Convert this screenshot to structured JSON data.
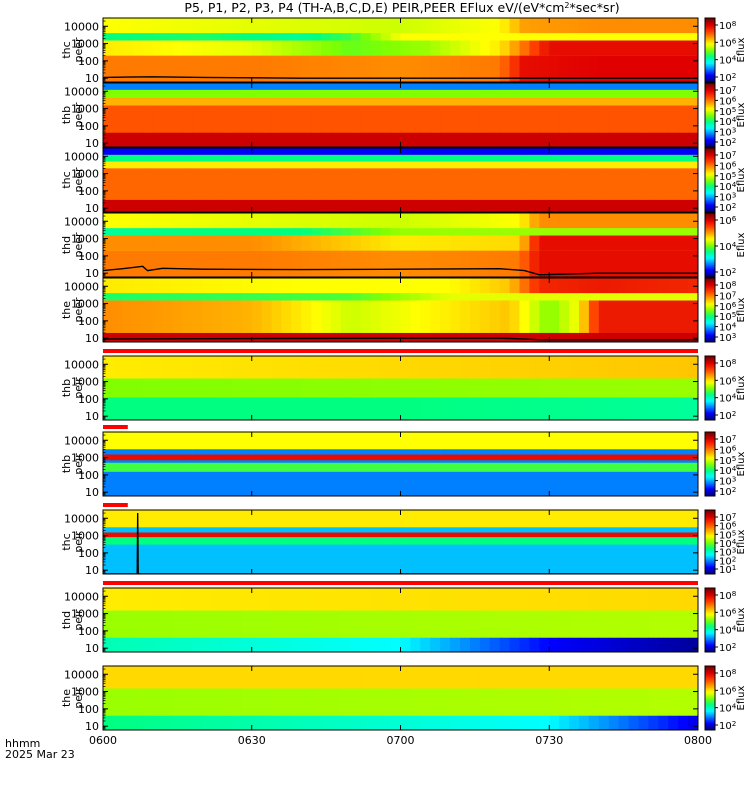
{
  "title": "P5, P1, P2, P3, P4 (TH-A,B,C,D,E) PEIR,PEER EFlux eV/(eV*cm^2*sec*sr)",
  "time_axis": {
    "label": "hhmm",
    "date": "2025 Mar 23",
    "ticks": [
      "0600",
      "0630",
      "0700",
      "0730",
      "0800"
    ],
    "range_minutes": [
      0,
      120
    ]
  },
  "colors": {
    "colormap": [
      "#000080",
      "#0000ff",
      "#0080ff",
      "#00ffff",
      "#00ff80",
      "#80ff00",
      "#ffff00",
      "#ffa000",
      "#ff4000",
      "#e00000",
      "#800000"
    ],
    "trace": "#000000",
    "flag_red": "#ff0000"
  },
  "chart_data": [
    {
      "type": "heatmap",
      "ylabel": [
        "thc",
        "peer"
      ],
      "yscale": "log",
      "ylim": [
        6,
        30000
      ],
      "yticks": [
        "10",
        "100",
        "1000",
        "10000"
      ],
      "colorbar": {
        "label": "Eflux",
        "ticks": [
          "10^2",
          "10^4",
          "10^6",
          "10^8"
        ]
      },
      "bands": [
        {
          "e_lo": 6,
          "e_hi": 30000,
          "x": [
            0,
            30,
            60,
            80,
            85,
            100,
            120
          ],
          "level": [
            0.6,
            0.58,
            0.56,
            0.6,
            0.7,
            0.72,
            0.72
          ]
        },
        {
          "e_lo": 1500,
          "e_hi": 4000,
          "x": [
            0,
            20,
            40,
            50,
            60
          ],
          "level": [
            0.4,
            0.42,
            0.38,
            0.45,
            0.6
          ]
        },
        {
          "e_lo": 200,
          "e_hi": 1500,
          "x": [
            0,
            30,
            50,
            65,
            80,
            90
          ],
          "level": [
            0.62,
            0.58,
            0.48,
            0.52,
            0.62,
            0.88
          ]
        },
        {
          "e_lo": 6,
          "e_hi": 200,
          "x": [
            0,
            30,
            60,
            80,
            85,
            100,
            120
          ],
          "level": [
            0.74,
            0.74,
            0.72,
            0.74,
            0.88,
            0.9,
            0.9
          ]
        }
      ],
      "trace": {
        "x": [
          0,
          10,
          20,
          40,
          60,
          80,
          85,
          100,
          120
        ],
        "y": [
          11,
          12,
          11,
          10,
          10,
          10,
          10,
          10,
          10
        ]
      }
    },
    {
      "type": "heatmap",
      "ylabel": [
        "thb",
        "peer"
      ],
      "yscale": "log",
      "ylim": [
        6,
        30000
      ],
      "yticks": [
        "10",
        "100",
        "1000",
        "10000"
      ],
      "colorbar": {
        "label": "Eflux",
        "ticks": [
          "10^2",
          "10^3",
          "10^4",
          "10^5",
          "10^6",
          "10^7"
        ]
      },
      "bands": [
        {
          "e_lo": 6,
          "e_hi": 30000,
          "x": [
            0,
            120
          ],
          "level": [
            0.78,
            0.78
          ]
        },
        {
          "e_lo": 12000,
          "e_hi": 30000,
          "x": [
            0,
            120
          ],
          "level": [
            0.2,
            0.2
          ]
        },
        {
          "e_lo": 4000,
          "e_hi": 12000,
          "x": [
            0,
            120
          ],
          "level": [
            0.5,
            0.5
          ]
        },
        {
          "e_lo": 1500,
          "e_hi": 4000,
          "x": [
            0,
            120
          ],
          "level": [
            0.68,
            0.68
          ]
        },
        {
          "e_lo": 6,
          "e_hi": 40,
          "x": [
            0,
            120
          ],
          "level": [
            0.92,
            0.92
          ]
        }
      ]
    },
    {
      "type": "heatmap",
      "ylabel": [
        "thc",
        "peer"
      ],
      "yscale": "log",
      "ylim": [
        6,
        30000
      ],
      "yticks": [
        "10",
        "100",
        "1000",
        "10000"
      ],
      "colorbar": {
        "label": "Eflux",
        "ticks": [
          "10^2",
          "10^3",
          "10^4",
          "10^5",
          "10^6",
          "10^7"
        ]
      },
      "bands": [
        {
          "e_lo": 6,
          "e_hi": 30000,
          "x": [
            0,
            120
          ],
          "level": [
            0.76,
            0.76
          ]
        },
        {
          "e_lo": 12000,
          "e_hi": 30000,
          "x": [
            0,
            120
          ],
          "level": [
            0.1,
            0.1
          ]
        },
        {
          "e_lo": 5000,
          "e_hi": 12000,
          "x": [
            0,
            120
          ],
          "level": [
            0.4,
            0.4
          ]
        },
        {
          "e_lo": 2000,
          "e_hi": 5000,
          "x": [
            0,
            120
          ],
          "level": [
            0.62,
            0.62
          ]
        },
        {
          "e_lo": 6,
          "e_hi": 30,
          "x": [
            0,
            120
          ],
          "level": [
            0.92,
            0.92
          ]
        }
      ]
    },
    {
      "type": "heatmap",
      "ylabel": [
        "thd",
        "peer"
      ],
      "yscale": "log",
      "ylim": [
        6,
        30000
      ],
      "yticks": [
        "10",
        "100",
        "1000",
        "10000"
      ],
      "colorbar": {
        "label": "Eflux",
        "ticks": [
          "10^2",
          "10^4",
          "10^6"
        ]
      },
      "bands": [
        {
          "e_lo": 6,
          "e_hi": 30000,
          "x": [
            0,
            30,
            60,
            84,
            88,
            100,
            120
          ],
          "level": [
            0.6,
            0.58,
            0.56,
            0.6,
            0.72,
            0.72,
            0.72
          ]
        },
        {
          "e_lo": 1500,
          "e_hi": 4000,
          "x": [
            0,
            20,
            40,
            60
          ],
          "level": [
            0.38,
            0.4,
            0.4,
            0.52
          ]
        },
        {
          "e_lo": 200,
          "e_hi": 1500,
          "x": [
            0,
            30,
            60,
            84,
            88
          ],
          "level": [
            0.72,
            0.72,
            0.62,
            0.64,
            0.88
          ]
        },
        {
          "e_lo": 6,
          "e_hi": 200,
          "x": [
            0,
            30,
            60,
            84,
            88,
            120
          ],
          "level": [
            0.74,
            0.74,
            0.72,
            0.74,
            0.88,
            0.88
          ]
        }
      ],
      "trace": {
        "x": [
          0,
          4,
          8,
          9,
          12,
          20,
          40,
          60,
          80,
          85,
          88,
          100,
          120
        ],
        "y": [
          14,
          18,
          25,
          14,
          19,
          17,
          16,
          17,
          18,
          14,
          8,
          10,
          10
        ]
      }
    },
    {
      "type": "heatmap",
      "ylabel": [
        "the",
        "peer"
      ],
      "yscale": "log",
      "ylim": [
        6,
        30000
      ],
      "yticks": [
        "10",
        "100",
        "1000",
        "10000"
      ],
      "colorbar": {
        "label": "Eflux",
        "ticks": [
          "10^3",
          "10^4",
          "10^5",
          "10^6",
          "10^7",
          "10^8"
        ]
      },
      "bands": [
        {
          "e_lo": 6,
          "e_hi": 30000,
          "x": [
            0,
            40,
            70,
            82,
            88,
            100,
            120
          ],
          "level": [
            0.62,
            0.6,
            0.6,
            0.66,
            0.84,
            0.86,
            0.84
          ]
        },
        {
          "e_lo": 1500,
          "e_hi": 4000,
          "x": [
            0,
            30,
            50,
            70
          ],
          "level": [
            0.42,
            0.44,
            0.46,
            0.58
          ]
        },
        {
          "e_lo": 20,
          "e_hi": 1500,
          "x": [
            0,
            30,
            50,
            70,
            82,
            90,
            96,
            100
          ],
          "level": [
            0.72,
            0.68,
            0.56,
            0.62,
            0.66,
            0.5,
            0.6,
            0.86
          ]
        },
        {
          "e_lo": 6,
          "e_hi": 20,
          "x": [
            0,
            60,
            120
          ],
          "level": [
            0.92,
            0.92,
            0.92
          ]
        }
      ],
      "trace": {
        "x": [
          0,
          60,
          80,
          85,
          88,
          100,
          120
        ],
        "y": [
          9,
          10,
          10,
          9,
          8,
          8,
          8
        ]
      }
    },
    {
      "type": "heatmap",
      "ylabel": [
        "thb",
        "peir"
      ],
      "yscale": "log",
      "ylim": [
        6,
        30000
      ],
      "yticks": [
        "10",
        "100",
        "1000",
        "10000"
      ],
      "colorbar": {
        "label": "Eflux",
        "ticks": [
          "10^2",
          "10^4",
          "10^6",
          "10^8"
        ]
      },
      "flag": {
        "x_start": 0,
        "x_end": 120
      },
      "bands": [
        {
          "e_lo": 6,
          "e_hi": 30000,
          "x": [
            0,
            120
          ],
          "level": [
            0.5,
            0.52
          ]
        },
        {
          "e_lo": 1500,
          "e_hi": 30000,
          "x": [
            0,
            60,
            120
          ],
          "level": [
            0.62,
            0.64,
            0.66
          ]
        },
        {
          "e_lo": 6,
          "e_hi": 120,
          "x": [
            0,
            60,
            120
          ],
          "level": [
            0.4,
            0.4,
            0.38
          ]
        }
      ]
    },
    {
      "type": "heatmap",
      "ylabel": [
        "thb",
        "peir"
      ],
      "yscale": "log",
      "ylim": [
        6,
        30000
      ],
      "yticks": [
        "10",
        "100",
        "1000",
        "10000"
      ],
      "colorbar": {
        "label": "Eflux",
        "ticks": [
          "10^2",
          "10^3",
          "10^4",
          "10^5",
          "10^6",
          "10^7"
        ]
      },
      "flag": {
        "x_start": 0,
        "x_end": 5
      },
      "bands": [
        {
          "e_lo": 6,
          "e_hi": 30000,
          "x": [
            0,
            120
          ],
          "level": [
            0.2,
            0.2
          ]
        },
        {
          "e_lo": 3000,
          "e_hi": 30000,
          "x": [
            0,
            120
          ],
          "level": [
            0.6,
            0.6
          ]
        },
        {
          "e_lo": 700,
          "e_hi": 1500,
          "x": [
            0,
            120
          ],
          "level": [
            0.88,
            0.88
          ]
        },
        {
          "e_lo": 150,
          "e_hi": 500,
          "x": [
            0,
            120
          ],
          "level": [
            0.45,
            0.45
          ]
        }
      ]
    },
    {
      "type": "heatmap",
      "ylabel": [
        "thc",
        "peir"
      ],
      "yscale": "log",
      "ylim": [
        6,
        30000
      ],
      "yticks": [
        "10",
        "100",
        "1000",
        "10000"
      ],
      "colorbar": {
        "label": "Eflux",
        "ticks": [
          "10^1",
          "10^2",
          "10^3",
          "10^4",
          "10^5",
          "10^6",
          "10^7"
        ]
      },
      "flag": {
        "x_start": 0,
        "x_end": 5
      },
      "bands": [
        {
          "e_lo": 6,
          "e_hi": 30000,
          "x": [
            0,
            120
          ],
          "level": [
            0.25,
            0.25
          ]
        },
        {
          "e_lo": 3000,
          "e_hi": 30000,
          "x": [
            0,
            120
          ],
          "level": [
            0.62,
            0.62
          ]
        },
        {
          "e_lo": 800,
          "e_hi": 1500,
          "x": [
            0,
            120
          ],
          "level": [
            0.88,
            0.88
          ]
        },
        {
          "e_lo": 300,
          "e_hi": 800,
          "x": [
            0,
            120
          ],
          "level": [
            0.4,
            0.4
          ]
        }
      ],
      "trace": {
        "x": [
          0,
          6.9,
          7,
          7.1,
          120
        ],
        "y": [
          6,
          6,
          20000,
          6,
          6
        ]
      }
    },
    {
      "type": "heatmap",
      "ylabel": [
        "thd",
        "peir"
      ],
      "yscale": "log",
      "ylim": [
        6,
        30000
      ],
      "yticks": [
        "10",
        "100",
        "1000",
        "10000"
      ],
      "colorbar": {
        "label": "Eflux",
        "ticks": [
          "10^2",
          "10^4",
          "10^6",
          "10^8"
        ]
      },
      "flag": {
        "x_start": 0,
        "x_end": 120
      },
      "bands": [
        {
          "e_lo": 6,
          "e_hi": 30000,
          "x": [
            0,
            120
          ],
          "level": [
            0.52,
            0.54
          ]
        },
        {
          "e_lo": 1500,
          "e_hi": 30000,
          "x": [
            0,
            120
          ],
          "level": [
            0.62,
            0.64
          ]
        },
        {
          "e_lo": 6,
          "e_hi": 40,
          "x": [
            0,
            60,
            90,
            120
          ],
          "level": [
            0.36,
            0.3,
            0.1,
            0.02
          ]
        }
      ]
    },
    {
      "type": "heatmap",
      "ylabel": [
        "the",
        "peir"
      ],
      "yscale": "log",
      "ylim": [
        6,
        30000
      ],
      "yticks": [
        "10",
        "100",
        "1000",
        "10000"
      ],
      "colorbar": {
        "label": "Eflux",
        "ticks": [
          "10^2",
          "10^4",
          "10^6",
          "10^8"
        ]
      },
      "bands": [
        {
          "e_lo": 6,
          "e_hi": 30000,
          "x": [
            0,
            120
          ],
          "level": [
            0.52,
            0.54
          ]
        },
        {
          "e_lo": 1500,
          "e_hi": 30000,
          "x": [
            0,
            120
          ],
          "level": [
            0.64,
            0.64
          ]
        },
        {
          "e_lo": 6,
          "e_hi": 40,
          "x": [
            0,
            90,
            120
          ],
          "level": [
            0.4,
            0.3,
            0.08
          ]
        }
      ]
    }
  ]
}
